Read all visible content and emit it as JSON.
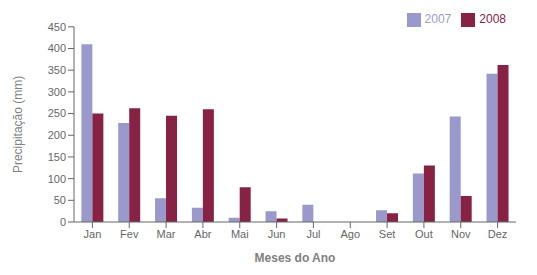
{
  "chart_data": {
    "type": "bar",
    "categories": [
      "Jan",
      "Fev",
      "Mar",
      "Abr",
      "Mai",
      "Jun",
      "Jul",
      "Ago",
      "Set",
      "Out",
      "Nov",
      "Dez"
    ],
    "series": [
      {
        "name": "2007",
        "color": "#9999cc",
        "values": [
          410,
          228,
          55,
          33,
          10,
          25,
          40,
          0,
          27,
          112,
          243,
          342
        ]
      },
      {
        "name": "2008",
        "color": "#882244",
        "values": [
          250,
          262,
          245,
          260,
          80,
          8,
          0,
          0,
          20,
          130,
          60,
          362
        ]
      }
    ],
    "xlabel": "Meses do Ano",
    "ylabel": "Precipitação (mm)",
    "ylim": [
      0,
      450
    ],
    "yticks": [
      0,
      50,
      100,
      150,
      200,
      250,
      300,
      350,
      400,
      450
    ],
    "grid": false,
    "legend": "upper right"
  }
}
